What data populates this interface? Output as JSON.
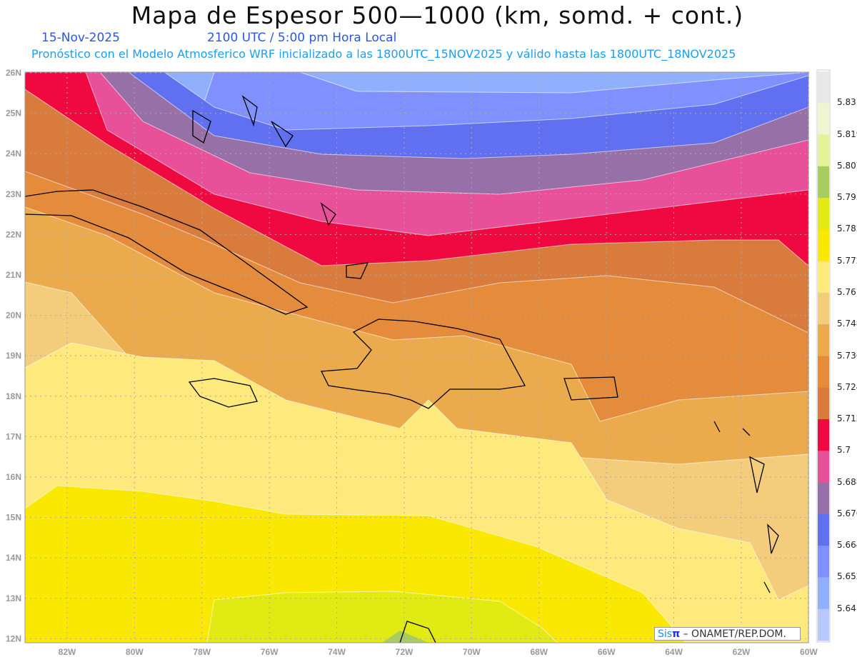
{
  "header": {
    "title": "Mapa de Espesor 500—1000 (km, somd. + cont.)",
    "date": "15-Nov-2025",
    "time": "2100 UTC / 5:00 pm Hora Local",
    "subtitle": "Pronóstico con el Modelo Atmosferico WRF inicializado a las 1800UTC_15NOV2025 y válido hasta las  1800UTC_18NOV2025"
  },
  "axes": {
    "lat_labels": [
      "26N",
      "25N",
      "24N",
      "23N",
      "22N",
      "21N",
      "20N",
      "19N",
      "18N",
      "17N",
      "16N",
      "15N",
      "14N",
      "13N",
      "12N"
    ],
    "lat_values": [
      26,
      25,
      24,
      23,
      22,
      21,
      20,
      19,
      18,
      17,
      16,
      15,
      14,
      13,
      12
    ],
    "lon_labels": [
      "82W",
      "80W",
      "78W",
      "76W",
      "74W",
      "72W",
      "70W",
      "68W",
      "66W",
      "64W",
      "62W",
      "60W"
    ],
    "lon_values": [
      82,
      80,
      78,
      76,
      74,
      72,
      70,
      68,
      66,
      64,
      62,
      60
    ]
  },
  "colorbar": {
    "labels": [
      "5.831",
      "5.819",
      "5.807",
      "5.795",
      "5.783",
      "5.772",
      "5.76",
      "5.748",
      "5.736",
      "5.724",
      "5.712",
      "5.7",
      "5.688",
      "5.676",
      "5.664",
      "5.652",
      "5.64"
    ],
    "colors": [
      "#e8e8e8",
      "#eef5d0",
      "#e4f39a",
      "#a8cc60",
      "#e2ea14",
      "#fbe800",
      "#fde97c",
      "#f3cd7c",
      "#ebab4c",
      "#e48c3c",
      "#d87b3c",
      "#f00840",
      "#e8509a",
      "#9870a8",
      "#6070f0",
      "#8090ff",
      "#90b0ff",
      "#b8c8ff"
    ]
  },
  "credit": {
    "sis": "Sis",
    "pi": "π",
    "text": " –  ONAMET/REP.DOM."
  }
}
